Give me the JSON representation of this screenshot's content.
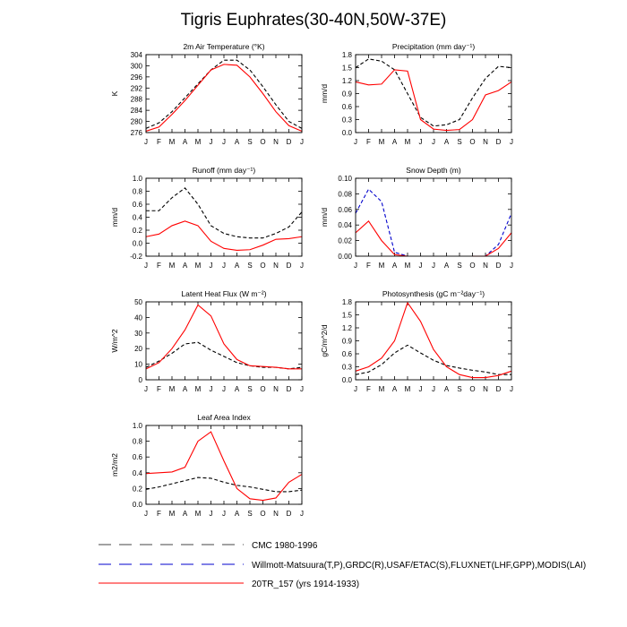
{
  "figure_title": "Tigris Euphrates(30-40N,50W-37E)",
  "months": [
    "J",
    "F",
    "M",
    "A",
    "M",
    "J",
    "J",
    "A",
    "S",
    "O",
    "N",
    "D",
    "J"
  ],
  "legend": [
    {
      "label": "CMC 1980-1996",
      "color": "#000000",
      "dash": "long"
    },
    {
      "label": "Willmott-Matsuura(T,P),GRDC(R),USAF/ETAC(S),FLUXNET(LHF,GPP),MODIS(LAI)",
      "color": "#0000cc",
      "dash": "long"
    },
    {
      "label": "20TR_157 (yrs 1914-1933)",
      "color": "#ff0000",
      "dash": "solid"
    }
  ],
  "chart_data": [
    {
      "type": "line",
      "title": "2m Air Temperature (°K)",
      "ylabel": "K",
      "ylim": [
        276,
        304
      ],
      "yticks": [
        "276",
        "280",
        "284",
        "288",
        "292",
        "296",
        "300",
        "304"
      ],
      "series": [
        {
          "name": "CMC 1980-1996",
          "color": "#000000",
          "style": "dashed",
          "values": [
            277.5,
            279.5,
            283.5,
            288.5,
            293.5,
            298.5,
            302.0,
            302.0,
            298.5,
            292.5,
            286.0,
            280.0,
            277.5
          ]
        },
        {
          "name": "20TR_157",
          "color": "#ff0000",
          "style": "solid",
          "values": [
            276.5,
            278.0,
            282.5,
            287.5,
            293.0,
            298.5,
            300.5,
            300.2,
            296.0,
            290.0,
            283.5,
            278.5,
            276.5
          ]
        }
      ]
    },
    {
      "type": "line",
      "title": "Precipitation (mm day⁻¹)",
      "ylabel": "mm/d",
      "ylim": [
        0,
        1.8
      ],
      "yticks": [
        "0.0",
        "0.3",
        "0.6",
        "0.9",
        "1.2",
        "1.5",
        "1.8"
      ],
      "series": [
        {
          "name": "CMC 1980-1996",
          "color": "#000000",
          "style": "dashed",
          "values": [
            1.5,
            1.7,
            1.65,
            1.45,
            0.9,
            0.35,
            0.15,
            0.18,
            0.3,
            0.8,
            1.25,
            1.53,
            1.5
          ]
        },
        {
          "name": "20TR_157",
          "color": "#ff0000",
          "style": "solid",
          "values": [
            1.17,
            1.1,
            1.12,
            1.45,
            1.42,
            0.3,
            0.08,
            0.05,
            0.07,
            0.3,
            0.87,
            0.97,
            1.17
          ]
        }
      ]
    },
    {
      "type": "line",
      "title": "Runoff (mm day⁻¹)",
      "ylabel": "mm/d",
      "ylim": [
        -0.2,
        1.0
      ],
      "yticks": [
        "-0.2",
        "0.0",
        "0.2",
        "0.4",
        "0.6",
        "0.8",
        "1.0"
      ],
      "series": [
        {
          "name": "CMC 1980-1996",
          "color": "#000000",
          "style": "dashed",
          "values": [
            0.5,
            0.5,
            0.7,
            0.85,
            0.6,
            0.27,
            0.15,
            0.1,
            0.08,
            0.08,
            0.15,
            0.25,
            0.48
          ]
        },
        {
          "name": "20TR_157",
          "color": "#ff0000",
          "style": "solid",
          "values": [
            0.1,
            0.14,
            0.27,
            0.34,
            0.27,
            0.03,
            -0.08,
            -0.11,
            -0.1,
            -0.03,
            0.06,
            0.07,
            0.1
          ]
        }
      ]
    },
    {
      "type": "line",
      "title": "Snow Depth (m)",
      "ylabel": "mm/d",
      "ylim": [
        0,
        0.1
      ],
      "yticks": [
        "0.00",
        "0.02",
        "0.04",
        "0.06",
        "0.08",
        "0.10"
      ],
      "series": [
        {
          "name": "Willmott-Matsuura / USAF/ETAC",
          "color": "#0000cc",
          "style": "dashed",
          "values": [
            0.055,
            0.086,
            0.07,
            0.005,
            0.0,
            null,
            null,
            null,
            null,
            0.0,
            0.0,
            0.015,
            0.055
          ]
        },
        {
          "name": "20TR_157",
          "color": "#ff0000",
          "style": "solid",
          "values": [
            0.03,
            0.045,
            0.02,
            0.002,
            0.0,
            null,
            null,
            null,
            null,
            0.0,
            0.0,
            0.01,
            0.03
          ]
        }
      ]
    },
    {
      "type": "line",
      "title": "Latent Heat Flux (W m⁻²)",
      "ylabel": "W/m^2",
      "ylim": [
        0,
        50
      ],
      "yticks": [
        "0",
        "10",
        "20",
        "30",
        "40",
        "50"
      ],
      "series": [
        {
          "name": "CMC 1980-1996",
          "color": "#000000",
          "style": "dashed",
          "values": [
            8,
            12,
            17,
            23,
            24,
            19,
            15,
            11,
            9,
            8,
            8,
            7,
            8
          ]
        },
        {
          "name": "20TR_157",
          "color": "#ff0000",
          "style": "solid",
          "values": [
            7,
            11,
            20,
            32,
            48,
            41,
            23,
            13,
            9,
            8.5,
            8,
            7,
            7
          ]
        }
      ]
    },
    {
      "type": "line",
      "title": "Photosynthesis (gC m⁻²day⁻¹)",
      "ylabel": "gC/m^2/d",
      "ylim": [
        0,
        1.8
      ],
      "yticks": [
        "0.0",
        "0.3",
        "0.6",
        "0.9",
        "1.2",
        "1.5",
        "1.8"
      ],
      "series": [
        {
          "name": "CMC 1980-1996",
          "color": "#000000",
          "style": "dashed",
          "values": [
            0.12,
            0.18,
            0.35,
            0.62,
            0.8,
            0.62,
            0.45,
            0.33,
            0.27,
            0.22,
            0.18,
            0.12,
            0.12
          ]
        },
        {
          "name": "20TR_157",
          "color": "#ff0000",
          "style": "solid",
          "values": [
            0.2,
            0.3,
            0.5,
            0.9,
            1.78,
            1.35,
            0.7,
            0.3,
            0.12,
            0.05,
            0.05,
            0.1,
            0.2
          ]
        }
      ]
    },
    {
      "type": "line",
      "title": "Leaf Area Index",
      "ylabel": "m2/m2",
      "ylim": [
        0,
        1.0
      ],
      "yticks": [
        "0.0",
        "0.2",
        "0.4",
        "0.6",
        "0.8",
        "1.0"
      ],
      "series": [
        {
          "name": "CMC 1980-1996",
          "color": "#000000",
          "style": "dashed",
          "values": [
            0.19,
            0.22,
            0.26,
            0.3,
            0.34,
            0.33,
            0.28,
            0.24,
            0.22,
            0.19,
            0.16,
            0.16,
            0.18
          ]
        },
        {
          "name": "20TR_157",
          "color": "#ff0000",
          "style": "solid",
          "values": [
            0.39,
            0.4,
            0.41,
            0.47,
            0.8,
            0.92,
            0.55,
            0.2,
            0.07,
            0.05,
            0.08,
            0.28,
            0.38
          ]
        }
      ]
    }
  ]
}
